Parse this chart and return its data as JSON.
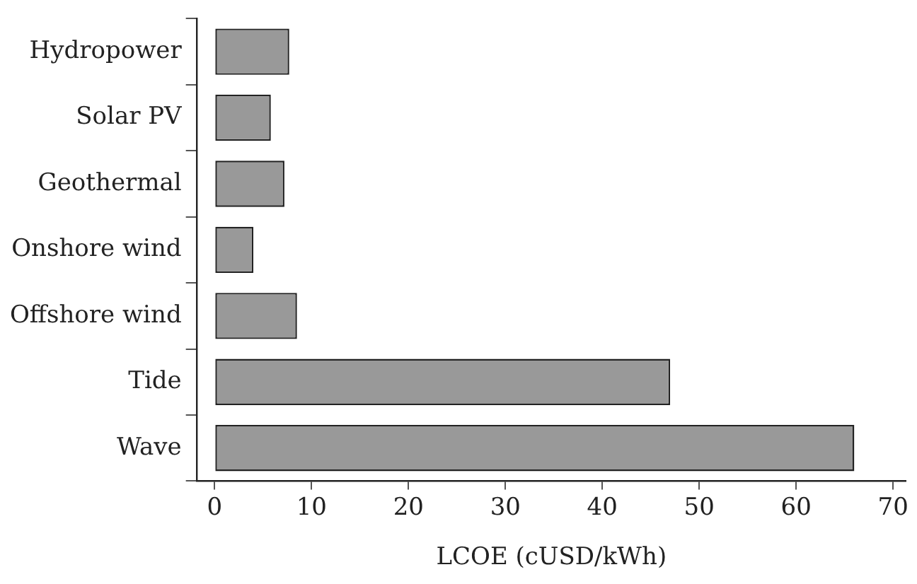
{
  "chart_data": {
    "type": "bar",
    "orientation": "horizontal",
    "xlabel": "LCOE (cUSD/kWh)",
    "categories": [
      "Hydropower",
      "Solar PV",
      "Geothermal",
      "Onshore wind",
      "Offshore wind",
      "Tide",
      "Wave"
    ],
    "values": [
      7.7,
      5.8,
      7.2,
      4.0,
      8.5,
      47.0,
      66.0
    ],
    "color": "#999999",
    "xlim": [
      -1.8,
      71.3
    ],
    "xticks": [
      0,
      10,
      20,
      30,
      40,
      50,
      60,
      70
    ],
    "grid": false,
    "legend": false
  }
}
